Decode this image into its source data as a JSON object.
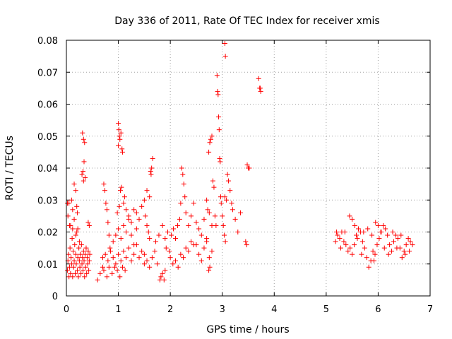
{
  "chart_data": {
    "type": "scatter",
    "title": "Day 336 of 2011, Rate Of TEC Index for receiver xmis",
    "xlabel": "GPS time / hours",
    "ylabel": "ROTI / TECUs",
    "xlim": [
      0,
      7
    ],
    "ylim": [
      0,
      0.08
    ],
    "xticks": [
      "0",
      "1",
      "2",
      "3",
      "4",
      "5",
      "6",
      "7"
    ],
    "yticks": [
      "0",
      "0.01",
      "0.02",
      "0.03",
      "0.04",
      "0.05",
      "0.06",
      "0.07",
      "0.08"
    ],
    "grid": true,
    "marker": "+",
    "color": "#ff0000",
    "series": [
      {
        "name": "xmis",
        "points": [
          [
            0.02,
            0.008
          ],
          [
            0.03,
            0.011
          ],
          [
            0.04,
            0.013
          ],
          [
            0.05,
            0.006
          ],
          [
            0.06,
            0.009
          ],
          [
            0.07,
            0.015
          ],
          [
            0.08,
            0.007
          ],
          [
            0.09,
            0.012
          ],
          [
            0.1,
            0.01
          ],
          [
            0.11,
            0.018
          ],
          [
            0.12,
            0.006
          ],
          [
            0.13,
            0.014
          ],
          [
            0.14,
            0.009
          ],
          [
            0.15,
            0.011
          ],
          [
            0.16,
            0.016
          ],
          [
            0.17,
            0.007
          ],
          [
            0.18,
            0.013
          ],
          [
            0.19,
            0.01
          ],
          [
            0.2,
            0.02
          ],
          [
            0.21,
            0.008
          ],
          [
            0.22,
            0.012
          ],
          [
            0.23,
            0.006
          ],
          [
            0.24,
            0.015
          ],
          [
            0.25,
            0.011
          ],
          [
            0.26,
            0.009
          ],
          [
            0.27,
            0.013
          ],
          [
            0.28,
            0.007
          ],
          [
            0.29,
            0.016
          ],
          [
            0.3,
            0.01
          ],
          [
            0.31,
            0.012
          ],
          [
            0.32,
            0.008
          ],
          [
            0.33,
            0.014
          ],
          [
            0.34,
            0.011
          ],
          [
            0.35,
            0.006
          ],
          [
            0.36,
            0.013
          ],
          [
            0.37,
            0.009
          ],
          [
            0.38,
            0.015
          ],
          [
            0.39,
            0.007
          ],
          [
            0.4,
            0.012
          ],
          [
            0.41,
            0.01
          ],
          [
            0.42,
            0.014
          ],
          [
            0.43,
            0.008
          ],
          [
            0.44,
            0.011
          ],
          [
            0.45,
            0.013
          ],
          [
            0.12,
            0.021
          ],
          [
            0.15,
            0.024
          ],
          [
            0.18,
            0.019
          ],
          [
            0.21,
            0.026
          ],
          [
            0.08,
            0.022
          ],
          [
            0.25,
            0.017
          ],
          [
            0.02,
            0.029
          ],
          [
            0.05,
            0.029
          ],
          [
            0.03,
            0.025
          ],
          [
            0.06,
            0.022
          ],
          [
            0.1,
            0.03
          ],
          [
            0.12,
            0.027
          ],
          [
            0.15,
            0.035
          ],
          [
            0.18,
            0.033
          ],
          [
            0.2,
            0.028
          ],
          [
            0.22,
            0.021
          ],
          [
            0.3,
            0.038
          ],
          [
            0.32,
            0.039
          ],
          [
            0.34,
            0.042
          ],
          [
            0.36,
            0.037
          ],
          [
            0.33,
            0.036
          ],
          [
            0.31,
            0.051
          ],
          [
            0.33,
            0.049
          ],
          [
            0.35,
            0.048
          ],
          [
            0.42,
            0.023
          ],
          [
            0.44,
            0.022
          ],
          [
            0.6,
            0.005
          ],
          [
            0.65,
            0.007
          ],
          [
            0.7,
            0.009
          ],
          [
            0.72,
            0.035
          ],
          [
            0.74,
            0.033
          ],
          [
            0.76,
            0.029
          ],
          [
            0.78,
            0.027
          ],
          [
            0.8,
            0.023
          ],
          [
            0.82,
            0.019
          ],
          [
            0.84,
            0.015
          ],
          [
            0.7,
            0.012
          ],
          [
            0.75,
            0.013
          ],
          [
            0.8,
            0.011
          ],
          [
            0.85,
            0.014
          ],
          [
            0.9,
            0.012
          ],
          [
            0.95,
            0.01
          ],
          [
            1.0,
            0.013
          ],
          [
            1.05,
            0.011
          ],
          [
            1.1,
            0.014
          ],
          [
            1.15,
            0.012
          ],
          [
            1.2,
            0.015
          ],
          [
            1.25,
            0.011
          ],
          [
            1.3,
            0.013
          ],
          [
            1.35,
            0.016
          ],
          [
            1.4,
            0.012
          ],
          [
            1.45,
            0.014
          ],
          [
            1.5,
            0.01
          ],
          [
            0.72,
            0.008
          ],
          [
            0.78,
            0.006
          ],
          [
            0.82,
            0.009
          ],
          [
            0.88,
            0.007
          ],
          [
            0.93,
            0.009
          ],
          [
            0.98,
            0.008
          ],
          [
            1.03,
            0.006
          ],
          [
            1.08,
            0.009
          ],
          [
            1.13,
            0.008
          ],
          [
            0.9,
            0.017
          ],
          [
            0.95,
            0.019
          ],
          [
            1.0,
            0.021
          ],
          [
            1.05,
            0.018
          ],
          [
            1.1,
            0.022
          ],
          [
            1.15,
            0.02
          ],
          [
            1.2,
            0.025
          ],
          [
            1.25,
            0.023
          ],
          [
            1.3,
            0.027
          ],
          [
            1.35,
            0.026
          ],
          [
            0.98,
            0.026
          ],
          [
            1.02,
            0.028
          ],
          [
            1.04,
            0.033
          ],
          [
            1.06,
            0.034
          ],
          [
            1.0,
            0.054
          ],
          [
            1.01,
            0.052
          ],
          [
            1.02,
            0.05
          ],
          [
            1.03,
            0.049
          ],
          [
            1.05,
            0.051
          ],
          [
            1.07,
            0.046
          ],
          [
            1.08,
            0.045
          ],
          [
            1.0,
            0.047
          ],
          [
            1.1,
            0.029
          ],
          [
            1.12,
            0.031
          ],
          [
            1.15,
            0.027
          ],
          [
            1.2,
            0.024
          ],
          [
            1.25,
            0.019
          ],
          [
            1.3,
            0.016
          ],
          [
            1.35,
            0.021
          ],
          [
            1.4,
            0.024
          ],
          [
            1.45,
            0.028
          ],
          [
            1.5,
            0.03
          ],
          [
            1.55,
            0.033
          ],
          [
            1.6,
            0.031
          ],
          [
            1.52,
            0.025
          ],
          [
            1.55,
            0.022
          ],
          [
            1.58,
            0.02
          ],
          [
            1.6,
            0.018
          ],
          [
            1.62,
            0.039
          ],
          [
            1.64,
            0.04
          ],
          [
            1.66,
            0.043
          ],
          [
            1.63,
            0.038
          ],
          [
            1.5,
            0.013
          ],
          [
            1.55,
            0.011
          ],
          [
            1.6,
            0.009
          ],
          [
            1.65,
            0.012
          ],
          [
            1.7,
            0.014
          ],
          [
            1.75,
            0.01
          ],
          [
            1.8,
            0.005
          ],
          [
            1.82,
            0.006
          ],
          [
            1.85,
            0.007
          ],
          [
            1.88,
            0.005
          ],
          [
            1.9,
            0.008
          ],
          [
            1.72,
            0.017
          ],
          [
            1.78,
            0.019
          ],
          [
            1.85,
            0.022
          ],
          [
            1.9,
            0.018
          ],
          [
            1.95,
            0.02
          ],
          [
            2.0,
            0.012
          ],
          [
            2.05,
            0.01
          ],
          [
            2.1,
            0.011
          ],
          [
            2.15,
            0.009
          ],
          [
            2.2,
            0.013
          ],
          [
            2.25,
            0.012
          ],
          [
            2.3,
            0.015
          ],
          [
            2.35,
            0.014
          ],
          [
            2.4,
            0.017
          ],
          [
            2.45,
            0.016
          ],
          [
            1.92,
            0.015
          ],
          [
            1.98,
            0.014
          ],
          [
            2.02,
            0.019
          ],
          [
            2.06,
            0.021
          ],
          [
            2.1,
            0.018
          ],
          [
            2.14,
            0.022
          ],
          [
            2.18,
            0.024
          ],
          [
            2.22,
            0.04
          ],
          [
            2.24,
            0.038
          ],
          [
            2.26,
            0.035
          ],
          [
            2.28,
            0.031
          ],
          [
            2.2,
            0.029
          ],
          [
            2.3,
            0.026
          ],
          [
            2.35,
            0.022
          ],
          [
            2.4,
            0.025
          ],
          [
            2.45,
            0.029
          ],
          [
            2.5,
            0.023
          ],
          [
            2.55,
            0.021
          ],
          [
            2.6,
            0.019
          ],
          [
            2.65,
            0.024
          ],
          [
            2.7,
            0.018
          ],
          [
            2.75,
            0.026
          ],
          [
            2.8,
            0.022
          ],
          [
            2.5,
            0.016
          ],
          [
            2.55,
            0.013
          ],
          [
            2.6,
            0.011
          ],
          [
            2.65,
            0.015
          ],
          [
            2.7,
            0.017
          ],
          [
            2.75,
            0.012
          ],
          [
            2.8,
            0.014
          ],
          [
            2.74,
            0.008
          ],
          [
            2.76,
            0.009
          ],
          [
            2.7,
            0.03
          ],
          [
            2.72,
            0.027
          ],
          [
            2.74,
            0.045
          ],
          [
            2.76,
            0.048
          ],
          [
            2.78,
            0.049
          ],
          [
            2.8,
            0.05
          ],
          [
            2.82,
            0.036
          ],
          [
            2.84,
            0.034
          ],
          [
            2.86,
            0.025
          ],
          [
            2.88,
            0.022
          ],
          [
            2.9,
            0.069
          ],
          [
            2.91,
            0.064
          ],
          [
            2.92,
            0.063
          ],
          [
            2.93,
            0.056
          ],
          [
            2.94,
            0.052
          ],
          [
            2.95,
            0.043
          ],
          [
            2.96,
            0.042
          ],
          [
            2.97,
            0.031
          ],
          [
            2.98,
            0.029
          ],
          [
            3.0,
            0.025
          ],
          [
            3.02,
            0.022
          ],
          [
            3.04,
            0.019
          ],
          [
            3.06,
            0.017
          ],
          [
            3.05,
            0.079
          ],
          [
            3.06,
            0.075
          ],
          [
            3.05,
            0.031
          ],
          [
            3.08,
            0.03
          ],
          [
            3.1,
            0.038
          ],
          [
            3.12,
            0.036
          ],
          [
            3.15,
            0.033
          ],
          [
            3.18,
            0.029
          ],
          [
            3.2,
            0.027
          ],
          [
            3.25,
            0.024
          ],
          [
            3.3,
            0.02
          ],
          [
            3.35,
            0.026
          ],
          [
            3.45,
            0.017
          ],
          [
            3.47,
            0.016
          ],
          [
            3.48,
            0.041
          ],
          [
            3.5,
            0.04
          ],
          [
            3.52,
            0.04
          ],
          [
            3.7,
            0.068
          ],
          [
            3.72,
            0.065
          ],
          [
            3.73,
            0.065
          ],
          [
            3.74,
            0.064
          ],
          [
            5.18,
            0.017
          ],
          [
            5.22,
            0.019
          ],
          [
            5.26,
            0.018
          ],
          [
            5.3,
            0.02
          ],
          [
            5.34,
            0.017
          ],
          [
            5.38,
            0.016
          ],
          [
            5.42,
            0.014
          ],
          [
            5.46,
            0.015
          ],
          [
            5.5,
            0.013
          ],
          [
            5.54,
            0.016
          ],
          [
            5.58,
            0.019
          ],
          [
            5.62,
            0.021
          ],
          [
            5.66,
            0.02
          ],
          [
            5.7,
            0.017
          ],
          [
            5.74,
            0.015
          ],
          [
            5.78,
            0.012
          ],
          [
            5.82,
            0.009
          ],
          [
            5.86,
            0.011
          ],
          [
            5.9,
            0.014
          ],
          [
            5.94,
            0.013
          ],
          [
            5.98,
            0.016
          ],
          [
            6.02,
            0.018
          ],
          [
            6.06,
            0.02
          ],
          [
            6.1,
            0.022
          ],
          [
            6.14,
            0.021
          ],
          [
            6.18,
            0.019
          ],
          [
            6.22,
            0.016
          ],
          [
            6.26,
            0.014
          ],
          [
            6.3,
            0.017
          ],
          [
            6.34,
            0.019
          ],
          [
            6.38,
            0.018
          ],
          [
            6.42,
            0.015
          ],
          [
            6.46,
            0.012
          ],
          [
            6.5,
            0.014
          ],
          [
            6.54,
            0.016
          ],
          [
            6.58,
            0.018
          ],
          [
            6.62,
            0.017
          ],
          [
            6.66,
            0.016
          ],
          [
            5.45,
            0.025
          ],
          [
            5.5,
            0.024
          ],
          [
            5.55,
            0.022
          ],
          [
            5.95,
            0.023
          ],
          [
            6.0,
            0.022
          ],
          [
            6.05,
            0.02
          ],
          [
            5.2,
            0.02
          ],
          [
            5.28,
            0.015
          ],
          [
            5.36,
            0.02
          ],
          [
            5.6,
            0.018
          ],
          [
            5.68,
            0.013
          ],
          [
            5.72,
            0.02
          ],
          [
            5.8,
            0.021
          ],
          [
            5.88,
            0.019
          ],
          [
            6.12,
            0.015
          ],
          [
            6.2,
            0.013
          ],
          [
            6.28,
            0.02
          ],
          [
            6.36,
            0.015
          ],
          [
            6.44,
            0.019
          ],
          [
            6.52,
            0.013
          ],
          [
            6.6,
            0.014
          ],
          [
            5.92,
            0.011
          ]
        ]
      }
    ]
  }
}
